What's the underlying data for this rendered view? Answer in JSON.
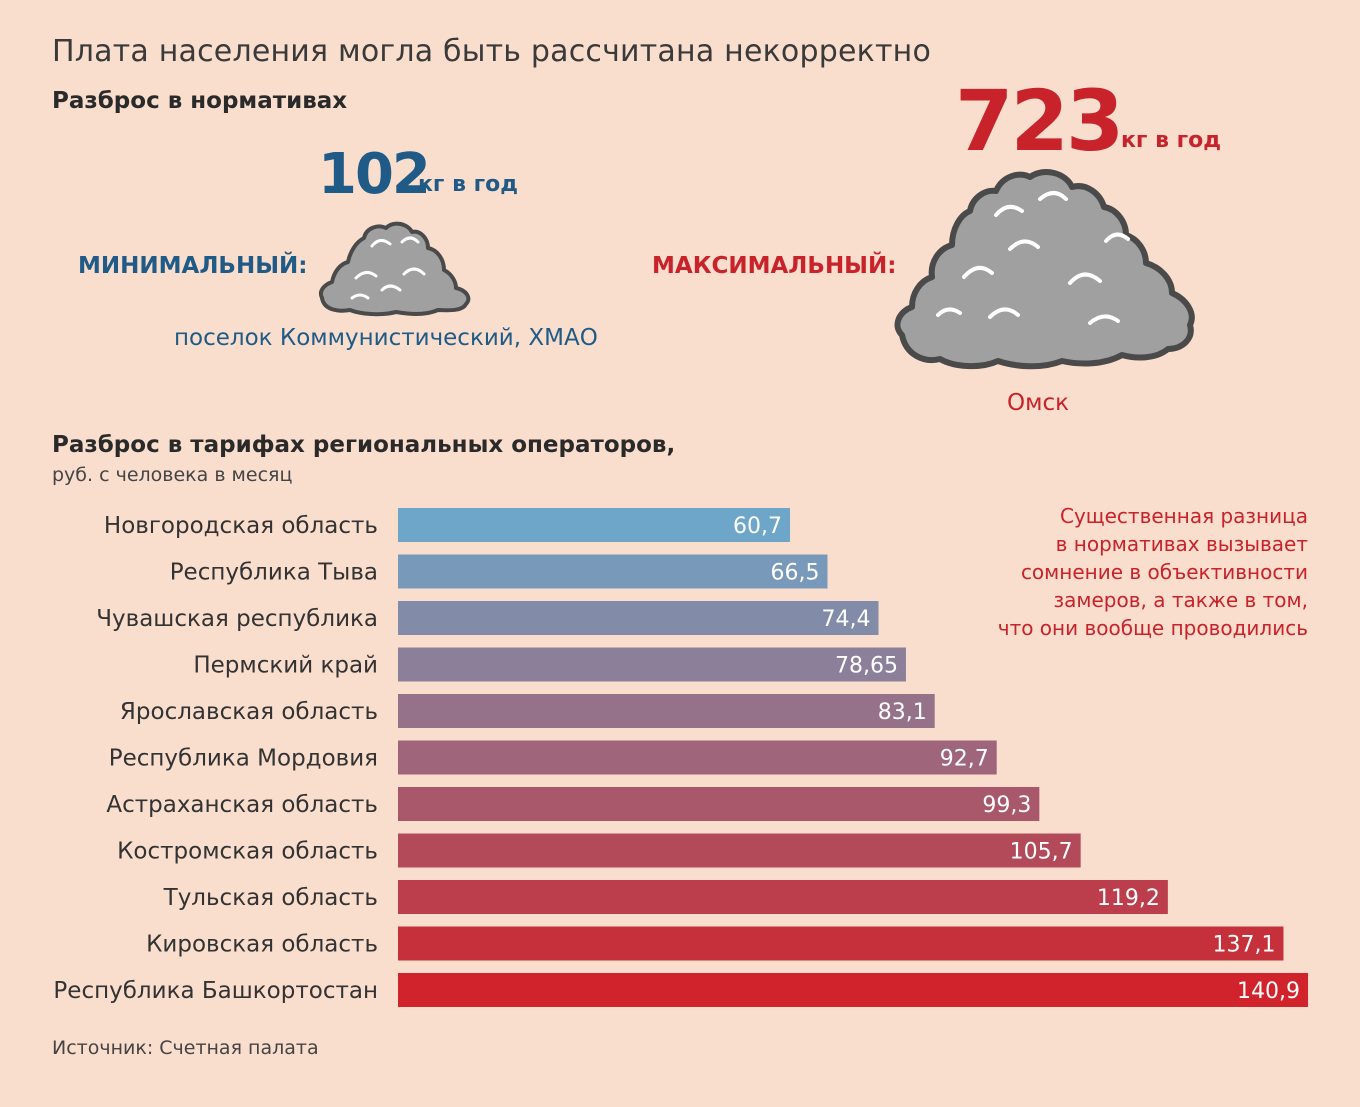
{
  "title": "Плата населения могла быть рассчитана некорректно",
  "norms": {
    "heading": "Разброс в нормативах",
    "min": {
      "label": "МИНИМАЛЬНЫЙ:",
      "value": "102",
      "unit": "кг в год",
      "place": "поселок Коммунистический, ХМАО"
    },
    "max": {
      "label": "МАКСИМАЛЬНЫЙ:",
      "value": "723",
      "unit": "кг в год",
      "place": "Омск"
    }
  },
  "tariffs": {
    "heading": "Разброс в тарифах региональных операторов,",
    "subheading": "руб. с человека в месяц"
  },
  "note": [
    "Существенная разница",
    "в нормативах вызывает",
    "сомнение в объективности",
    "замеров, а также в том,",
    "что они вообще проводились"
  ],
  "source": "Источник: Счетная палата",
  "colors": {
    "background": "#f9dece",
    "min_accent": "#1f5b86",
    "max_accent": "#c8222a",
    "bar_start": "#6ea6c9",
    "bar_end": "#d0232b",
    "pile_fill": "#a0a0a0",
    "pile_stroke": "#4a4a4a"
  },
  "icons": [
    "garbage-pile-icon-small",
    "garbage-pile-icon-large"
  ],
  "chart_data": {
    "type": "bar",
    "orientation": "horizontal",
    "categories": [
      "Новгородская область",
      "Республика Тыва",
      "Чувашская республика",
      "Пермский край",
      "Ярославская область",
      "Республика Мордовия",
      "Астраханская область",
      "Костромская область",
      "Тульская область",
      "Кировская область",
      "Республика Башкортостан"
    ],
    "values": [
      60.7,
      66.5,
      74.4,
      78.65,
      83.1,
      92.7,
      99.3,
      105.7,
      119.2,
      137.1,
      140.9
    ],
    "value_labels": [
      "60,7",
      "66,5",
      "74,4",
      "78,65",
      "83,1",
      "92,7",
      "99,3",
      "105,7",
      "119,2",
      "137,1",
      "140,9"
    ],
    "xlim": [
      0,
      140.9
    ],
    "grid": false,
    "legend": "none"
  }
}
